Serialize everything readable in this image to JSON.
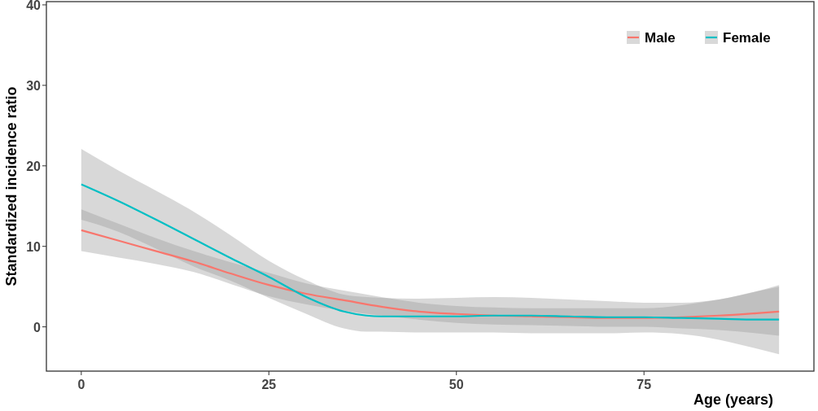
{
  "chart_data": {
    "type": "line",
    "xlabel": "Age (years)",
    "ylabel": "Standardized incidence ratio",
    "xlim": [
      -4.65,
      97.65
    ],
    "ylim": [
      -5.5,
      40.4
    ],
    "xticks": [
      0,
      25,
      50,
      75
    ],
    "yticks": [
      0,
      10,
      20,
      30,
      40
    ],
    "grid": false,
    "legend": "top right",
    "marker": "none",
    "line_style": "solid",
    "series": [
      {
        "name": "Male",
        "color": "#f8766d",
        "x": [
          0,
          5,
          10,
          15,
          20,
          25,
          30,
          35,
          40,
          45,
          50,
          55,
          60,
          65,
          70,
          75,
          80,
          85,
          90,
          93
        ],
        "values": [
          12.0,
          10.7,
          9.4,
          8.1,
          6.6,
          5.2,
          4.1,
          3.3,
          2.5,
          1.9,
          1.6,
          1.4,
          1.3,
          1.2,
          1.1,
          1.1,
          1.2,
          1.4,
          1.7,
          1.9
        ],
        "upper": [
          14.6,
          12.8,
          11.0,
          9.4,
          8.0,
          6.7,
          5.4,
          4.5,
          3.7,
          3.0,
          2.6,
          2.4,
          2.3,
          2.3,
          2.3,
          2.3,
          2.7,
          3.4,
          4.4,
          5.0
        ],
        "lower": [
          9.4,
          8.6,
          7.8,
          6.8,
          5.3,
          3.8,
          2.8,
          2.0,
          1.4,
          0.9,
          0.5,
          0.3,
          0.2,
          0.1,
          0.0,
          0.0,
          -0.2,
          -0.4,
          -0.8,
          -1.1
        ]
      },
      {
        "name": "Female",
        "color": "#00bfc4",
        "x": [
          0,
          5,
          10,
          15,
          20,
          25,
          30,
          35,
          38,
          40,
          45,
          50,
          55,
          60,
          65,
          70,
          75,
          80,
          85,
          90,
          93
        ],
        "values": [
          17.7,
          15.6,
          13.3,
          10.9,
          8.5,
          6.2,
          3.7,
          1.9,
          1.4,
          1.3,
          1.3,
          1.3,
          1.4,
          1.4,
          1.3,
          1.2,
          1.2,
          1.1,
          1.0,
          0.9,
          0.9
        ],
        "upper": [
          22.1,
          19.4,
          16.9,
          14.3,
          11.3,
          8.2,
          5.8,
          4.0,
          3.7,
          3.6,
          3.5,
          3.6,
          3.7,
          3.6,
          3.4,
          3.2,
          3.0,
          3.0,
          3.4,
          4.4,
          5.2
        ],
        "lower": [
          13.3,
          11.8,
          9.7,
          7.5,
          5.7,
          3.6,
          1.6,
          -0.2,
          -0.6,
          -0.6,
          -0.7,
          -0.7,
          -0.7,
          -0.8,
          -0.8,
          -0.8,
          -0.7,
          -0.9,
          -1.6,
          -2.7,
          -3.4
        ]
      }
    ]
  }
}
